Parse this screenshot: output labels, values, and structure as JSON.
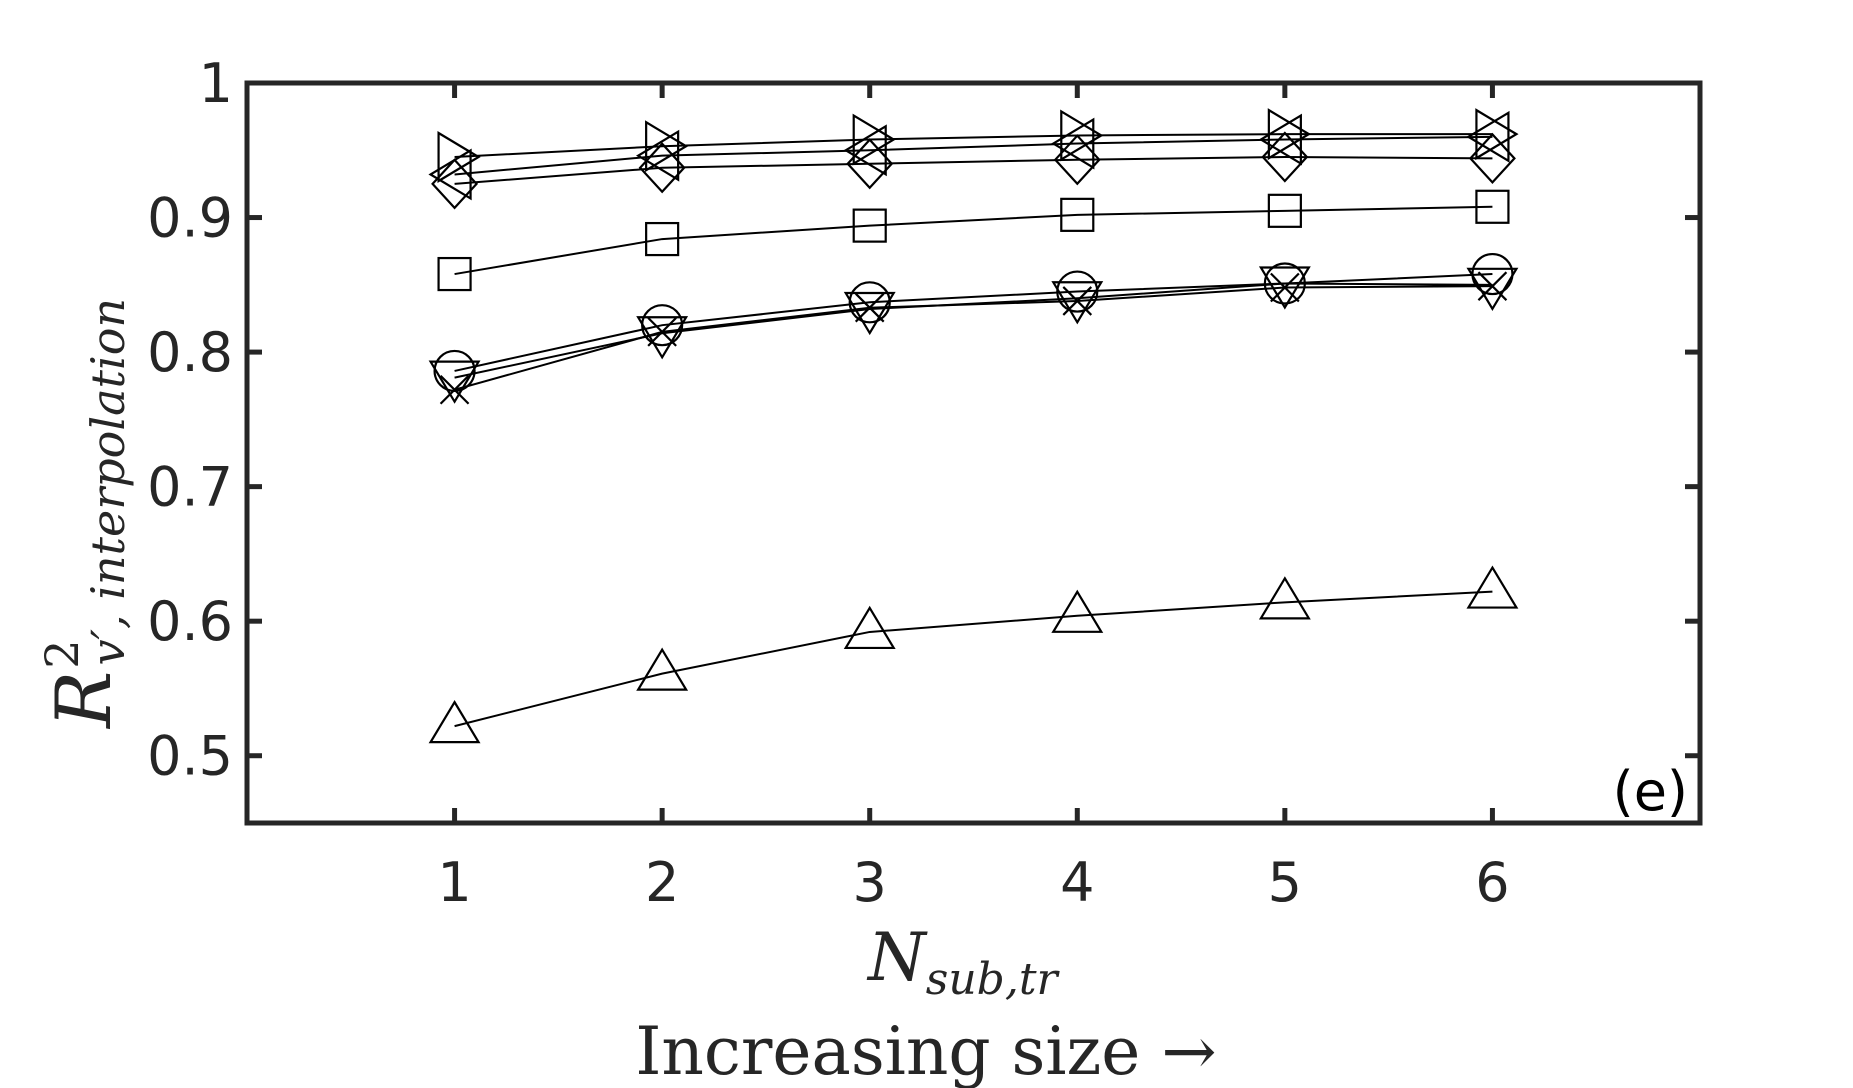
{
  "chart_data": {
    "type": "line",
    "panel_label": "(e)",
    "title": "",
    "xlabel": {
      "base": "N",
      "subscript": "sub,tr"
    },
    "xlabel2": "Increasing size →",
    "ylabel": {
      "base": "R",
      "superscript": "2",
      "subscript": "v′, interpolation"
    },
    "xlim": [
      0,
      7
    ],
    "ylim": [
      0.45,
      1.0
    ],
    "x": [
      1,
      2,
      3,
      4,
      5,
      6
    ],
    "xticks": [
      1,
      2,
      3,
      4,
      5,
      6
    ],
    "xtick_labels": [
      "1",
      "2",
      "3",
      "4",
      "5",
      "6"
    ],
    "yticks": [
      0.5,
      0.6,
      0.7,
      0.8,
      0.9,
      1.0
    ],
    "ytick_labels": [
      "0.5",
      "0.6",
      "0.7",
      "0.8",
      "0.9",
      "1"
    ],
    "series": [
      {
        "marker": "triangle-right",
        "values": [
          0.945,
          0.953,
          0.958,
          0.961,
          0.962,
          0.962
        ]
      },
      {
        "marker": "triangle-left",
        "values": [
          0.932,
          0.946,
          0.95,
          0.955,
          0.958,
          0.96
        ]
      },
      {
        "marker": "diamond",
        "values": [
          0.925,
          0.937,
          0.94,
          0.943,
          0.945,
          0.944
        ]
      },
      {
        "marker": "square",
        "values": [
          0.858,
          0.884,
          0.894,
          0.902,
          0.905,
          0.908
        ]
      },
      {
        "marker": "circle",
        "values": [
          0.786,
          0.82,
          0.837,
          0.845,
          0.851,
          0.858
        ]
      },
      {
        "marker": "triangle-down",
        "values": [
          0.781,
          0.814,
          0.832,
          0.84,
          0.851,
          0.85
        ]
      },
      {
        "marker": "x",
        "values": [
          0.772,
          0.815,
          0.833,
          0.838,
          0.848,
          0.849
        ]
      },
      {
        "marker": "triangle-up",
        "values": [
          0.522,
          0.561,
          0.592,
          0.604,
          0.614,
          0.622
        ]
      }
    ]
  }
}
